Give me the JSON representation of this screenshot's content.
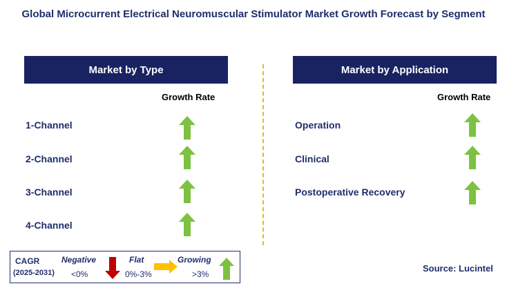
{
  "title": "Global Microcurrent Electrical Neuromuscular Stimulator Market Growth Forecast by Segment",
  "left_panel": {
    "header": "Market by Type",
    "growth_label": "Growth Rate",
    "rows": [
      {
        "label": "1-Channel",
        "trend": "growing"
      },
      {
        "label": "2-Channel",
        "trend": "growing"
      },
      {
        "label": "3-Channel",
        "trend": "growing"
      },
      {
        "label": "4-Channel",
        "trend": "growing"
      }
    ]
  },
  "right_panel": {
    "header": "Market by Application",
    "growth_label": "Growth Rate",
    "rows": [
      {
        "label": "Operation",
        "trend": "growing"
      },
      {
        "label": "Clinical",
        "trend": "growing"
      },
      {
        "label": "Postoperative Recovery",
        "trend": "growing"
      }
    ]
  },
  "legend": {
    "cagr": "CAGR",
    "period": "(2025-2031)",
    "negative_label": "Negative",
    "negative_range": "<0%",
    "flat_label": "Flat",
    "flat_range": "0%-3%",
    "growing_label": "Growing",
    "growing_range": ">3%"
  },
  "source": "Source: Lucintel",
  "colors": {
    "header_bg": "#192362",
    "text_navy": "#1f2d6b",
    "arrow_up": "#7dc142",
    "arrow_down": "#c00000",
    "arrow_flat": "#ffc000",
    "divider": "#f0b323"
  }
}
